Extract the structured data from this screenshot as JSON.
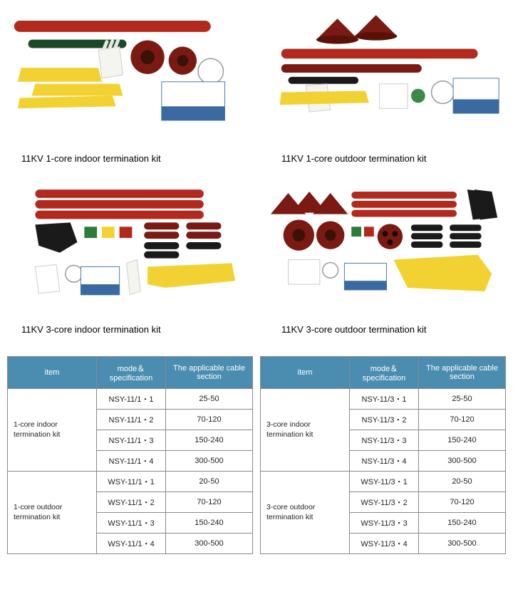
{
  "products": [
    {
      "caption": "11KV 1-core indoor termination kit"
    },
    {
      "caption": "11KV 1-core outdoor termination kit"
    },
    {
      "caption": "11KV 3-core indoor termination kit"
    },
    {
      "caption": "11KV 3-core outdoor termination kit"
    }
  ],
  "tables": {
    "headers": [
      "item",
      "mode＆specification",
      "The applicable cable section"
    ],
    "header_bg": "#4a8db0",
    "header_fg": "#ffffff",
    "border_color": "#888888",
    "left": {
      "groups": [
        {
          "item": "1-core indoor termination kit",
          "rows": [
            {
              "mode": "NSY-11/1・1",
              "section": "25-50"
            },
            {
              "mode": "NSY-11/1・2",
              "section": "70-120"
            },
            {
              "mode": "NSY-11/1・3",
              "section": "150-240"
            },
            {
              "mode": "NSY-11/1・4",
              "section": "300-500"
            }
          ]
        },
        {
          "item": "1-core outdoor termination kit",
          "rows": [
            {
              "mode": "WSY-11/1・1",
              "section": "20-50"
            },
            {
              "mode": "WSY-11/1・2",
              "section": "70-120"
            },
            {
              "mode": "WSY-11/1・3",
              "section": "150-240"
            },
            {
              "mode": "WSY-11/1・4",
              "section": "300-500"
            }
          ]
        }
      ]
    },
    "right": {
      "groups": [
        {
          "item": "3-core indoor termination kit",
          "rows": [
            {
              "mode": "NSY-11/3・1",
              "section": "25-50"
            },
            {
              "mode": "NSY-11/3・2",
              "section": "70-120"
            },
            {
              "mode": "NSY-11/3・3",
              "section": "150-240"
            },
            {
              "mode": "NSY-11/3・4",
              "section": "300-500"
            }
          ]
        },
        {
          "item": "3-core outdoor termination kit",
          "rows": [
            {
              "mode": "WSY-11/3・1",
              "section": "20-50"
            },
            {
              "mode": "WSY-11/3・2",
              "section": "70-120"
            },
            {
              "mode": "WSY-11/3・3",
              "section": "150-240"
            },
            {
              "mode": "WSY-11/3・4",
              "section": "300-500"
            }
          ]
        }
      ]
    }
  },
  "illustration_colors": {
    "tube_red": "#b22a1e",
    "tube_darkred": "#7a1a12",
    "glove_white": "#f5f5f0",
    "tape_yellow": "#f2d233",
    "patch_green": "#2e7a3a",
    "patch_black": "#1a1a1a",
    "paper_white": "#ffffff",
    "paper_blue": "#3a6aa0",
    "skirt_brown": "#5a2e1a"
  }
}
